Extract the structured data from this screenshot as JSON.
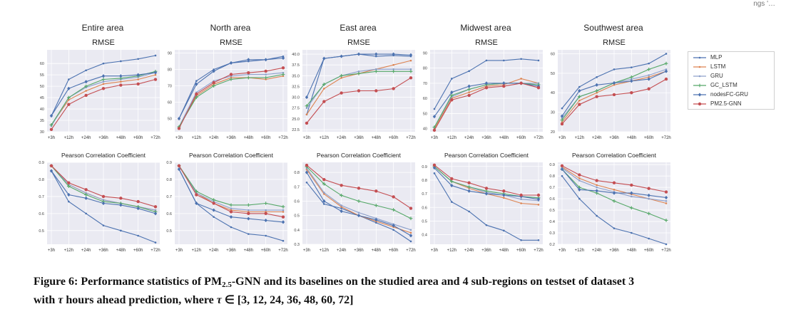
{
  "header_fragment": "ngs '…",
  "regions": [
    "Entire area",
    "North area",
    "East area",
    "Midwest area",
    "Southwest area"
  ],
  "x_ticks": [
    "+3h",
    "+12h",
    "+24h",
    "+36h",
    "+48h",
    "+60h",
    "+72h"
  ],
  "legend": [
    {
      "name": "MLP",
      "color": "#4c72b0",
      "marker": "none"
    },
    {
      "name": "LSTM",
      "color": "#dd8452",
      "marker": "none"
    },
    {
      "name": "GRU",
      "color": "#8da0cb",
      "marker": "none"
    },
    {
      "name": "GC_LSTM",
      "color": "#55a868",
      "marker": "plus"
    },
    {
      "name": "nodesFC-GRU",
      "color": "#4c72b0",
      "marker": "diamond"
    },
    {
      "name": "PM2.5-GNN",
      "color": "#c44e52",
      "marker": "circle"
    }
  ],
  "caption": {
    "prefix": "Figure 6: Performance statistics of PM",
    "sub": "2.5",
    "mid": "-GNN and its baselines on the studied area and 4 sub-regions on testset of dataset 3",
    "line2_a": "with ",
    "tau": "τ",
    "line2_b": " hours ahead prediction, where ",
    "line2_c": " ∈ [3, 12, 24, 36, 48, 60, 72]"
  },
  "chart_data": [
    {
      "type": "line",
      "region": "Entire area",
      "title": "RMSE",
      "ylim": [
        30,
        66
      ],
      "yticks": [
        "30",
        "35",
        "40",
        "45",
        "50",
        "55",
        "60"
      ],
      "categories": [
        "+3h",
        "+12h",
        "+24h",
        "+36h",
        "+48h",
        "+60h",
        "+72h"
      ],
      "series": [
        {
          "name": "MLP",
          "values": [
            37,
            53,
            57,
            60,
            61,
            62,
            63.5
          ]
        },
        {
          "name": "LSTM",
          "values": [
            33,
            44,
            48,
            51,
            52,
            53,
            55
          ]
        },
        {
          "name": "GRU",
          "values": [
            32.5,
            45,
            49.5,
            52,
            53,
            54,
            56
          ]
        },
        {
          "name": "GC_LSTM",
          "values": [
            33,
            45,
            50,
            53,
            53.5,
            54.5,
            56.5
          ]
        },
        {
          "name": "nodesFC-GRU",
          "values": [
            37,
            49,
            52,
            54.5,
            54.5,
            55,
            56
          ]
        },
        {
          "name": "PM2.5-GNN",
          "values": [
            31,
            42,
            46,
            49,
            50.5,
            51,
            53
          ]
        }
      ]
    },
    {
      "type": "line",
      "region": "North area",
      "title": "RMSE",
      "ylim": [
        42,
        92
      ],
      "yticks": [
        "50",
        "60",
        "70",
        "80",
        "90"
      ],
      "categories": [
        "+3h",
        "+12h",
        "+24h",
        "+36h",
        "+48h",
        "+60h",
        "+72h"
      ],
      "series": [
        {
          "name": "MLP",
          "values": [
            50,
            73,
            80,
            84,
            85,
            86,
            88
          ]
        },
        {
          "name": "LSTM",
          "values": [
            45,
            64,
            71,
            75,
            75,
            74,
            76
          ]
        },
        {
          "name": "GRU",
          "values": [
            45,
            66,
            73,
            76,
            77,
            77,
            78
          ]
        },
        {
          "name": "GC_LSTM",
          "values": [
            45,
            63,
            70,
            74,
            75,
            75,
            77
          ]
        },
        {
          "name": "nodesFC-GRU",
          "values": [
            50,
            71,
            79,
            84,
            86,
            86,
            87
          ]
        },
        {
          "name": "PM2.5-GNN",
          "values": [
            44,
            65,
            72,
            77,
            78,
            79,
            81
          ]
        }
      ]
    },
    {
      "type": "line",
      "region": "East area",
      "title": "RMSE",
      "ylim": [
        22,
        41
      ],
      "yticks": [
        "22.5",
        "25.0",
        "27.5",
        "30.0",
        "32.5",
        "35.0",
        "37.5",
        "40.0"
      ],
      "categories": [
        "+3h",
        "+12h",
        "+24h",
        "+36h",
        "+48h",
        "+60h",
        "+72h"
      ],
      "series": [
        {
          "name": "MLP",
          "values": [
            26,
            39,
            39.5,
            40,
            39.5,
            39.7,
            39.5
          ]
        },
        {
          "name": "LSTM",
          "values": [
            26,
            32,
            34.5,
            35.5,
            36.5,
            37.5,
            38.5
          ]
        },
        {
          "name": "GRU",
          "values": [
            27.5,
            33,
            35,
            36,
            36.5,
            36.5,
            36.5
          ]
        },
        {
          "name": "GC_LSTM",
          "values": [
            28,
            33,
            35,
            35.5,
            36,
            36,
            36
          ]
        },
        {
          "name": "nodesFC-GRU",
          "values": [
            30,
            39,
            39.5,
            40,
            40,
            40,
            39.8
          ]
        },
        {
          "name": "PM2.5-GNN",
          "values": [
            24,
            29,
            31,
            31.5,
            31.5,
            32,
            34.5
          ]
        }
      ]
    },
    {
      "type": "line",
      "region": "Midwest area",
      "title": "RMSE",
      "ylim": [
        38,
        92
      ],
      "yticks": [
        "40",
        "50",
        "60",
        "70",
        "80",
        "90"
      ],
      "categories": [
        "+3h",
        "+12h",
        "+24h",
        "+36h",
        "+48h",
        "+60h",
        "+72h"
      ],
      "series": [
        {
          "name": "MLP",
          "values": [
            53,
            73,
            78,
            85,
            85,
            86,
            85
          ]
        },
        {
          "name": "LSTM",
          "values": [
            40,
            60,
            64,
            68,
            69,
            73,
            70
          ]
        },
        {
          "name": "GRU",
          "values": [
            41,
            61,
            66,
            69,
            70,
            70,
            70
          ]
        },
        {
          "name": "GC_LSTM",
          "values": [
            41,
            62,
            66,
            69,
            70,
            70,
            69
          ]
        },
        {
          "name": "nodesFC-GRU",
          "values": [
            48,
            64,
            68,
            70,
            70,
            70,
            68
          ]
        },
        {
          "name": "PM2.5-GNN",
          "values": [
            39,
            59,
            62,
            67,
            68,
            70,
            67
          ]
        }
      ]
    },
    {
      "type": "line",
      "region": "Southwest area",
      "title": "RMSE",
      "ylim": [
        20,
        62
      ],
      "yticks": [
        "20",
        "30",
        "40",
        "50",
        "60"
      ],
      "categories": [
        "+3h",
        "+12h",
        "+24h",
        "+36h",
        "+48h",
        "+60h",
        "+72h"
      ],
      "series": [
        {
          "name": "MLP",
          "values": [
            32,
            43,
            48,
            52,
            53,
            55,
            60
          ]
        },
        {
          "name": "LSTM",
          "values": [
            25,
            36,
            40,
            44,
            46,
            48,
            51
          ]
        },
        {
          "name": "GRU",
          "values": [
            27,
            38,
            41,
            45,
            47,
            49,
            52
          ]
        },
        {
          "name": "GC_LSTM",
          "values": [
            26,
            38,
            41,
            45,
            48,
            52,
            55
          ]
        },
        {
          "name": "nodesFC-GRU",
          "values": [
            28,
            41,
            44,
            45,
            46,
            47,
            51
          ]
        },
        {
          "name": "PM2.5-GNN",
          "values": [
            24,
            34,
            38,
            39,
            40,
            42,
            47
          ]
        }
      ]
    },
    {
      "type": "line",
      "region": "Entire area",
      "title": "Pearson Correlation Coefficient",
      "ylim": [
        0.42,
        0.9
      ],
      "yticks": [
        "0.5",
        "0.6",
        "0.7",
        "0.8",
        "0.9"
      ],
      "categories": [
        "+3h",
        "+12h",
        "+24h",
        "+36h",
        "+48h",
        "+60h",
        "+72h"
      ],
      "series": [
        {
          "name": "MLP",
          "values": [
            0.85,
            0.67,
            0.6,
            0.53,
            0.5,
            0.47,
            0.43
          ]
        },
        {
          "name": "LSTM",
          "values": [
            0.88,
            0.77,
            0.72,
            0.68,
            0.66,
            0.64,
            0.62
          ]
        },
        {
          "name": "GRU",
          "values": [
            0.88,
            0.77,
            0.72,
            0.68,
            0.66,
            0.64,
            0.62
          ]
        },
        {
          "name": "GC_LSTM",
          "values": [
            0.88,
            0.76,
            0.71,
            0.67,
            0.66,
            0.64,
            0.61
          ]
        },
        {
          "name": "nodesFC-GRU",
          "values": [
            0.85,
            0.71,
            0.69,
            0.66,
            0.65,
            0.63,
            0.6
          ]
        },
        {
          "name": "PM2.5-GNN",
          "values": [
            0.88,
            0.78,
            0.74,
            0.7,
            0.69,
            0.67,
            0.64
          ]
        }
      ]
    },
    {
      "type": "line",
      "region": "North area",
      "title": "Pearson Correlation Coefficient",
      "ylim": [
        0.42,
        0.9
      ],
      "yticks": [
        "0.5",
        "0.6",
        "0.7",
        "0.8",
        "0.9"
      ],
      "categories": [
        "+3h",
        "+12h",
        "+24h",
        "+36h",
        "+48h",
        "+60h",
        "+72h"
      ],
      "series": [
        {
          "name": "MLP",
          "values": [
            0.86,
            0.66,
            0.58,
            0.52,
            0.48,
            0.47,
            0.44
          ]
        },
        {
          "name": "LSTM",
          "values": [
            0.88,
            0.72,
            0.66,
            0.62,
            0.61,
            0.61,
            0.61
          ]
        },
        {
          "name": "GRU",
          "values": [
            0.88,
            0.72,
            0.67,
            0.63,
            0.62,
            0.62,
            0.62
          ]
        },
        {
          "name": "GC_LSTM",
          "values": [
            0.88,
            0.73,
            0.68,
            0.65,
            0.65,
            0.66,
            0.64
          ]
        },
        {
          "name": "nodesFC-GRU",
          "values": [
            0.86,
            0.66,
            0.62,
            0.58,
            0.57,
            0.56,
            0.55
          ]
        },
        {
          "name": "PM2.5-GNN",
          "values": [
            0.88,
            0.71,
            0.66,
            0.61,
            0.6,
            0.6,
            0.58
          ]
        }
      ]
    },
    {
      "type": "line",
      "region": "East area",
      "title": "Pearson Correlation Coefficient",
      "ylim": [
        0.3,
        0.87
      ],
      "yticks": [
        "0.3",
        "0.4",
        "0.5",
        "0.6",
        "0.7",
        "0.8"
      ],
      "categories": [
        "+3h",
        "+12h",
        "+24h",
        "+36h",
        "+48h",
        "+60h",
        "+72h"
      ],
      "series": [
        {
          "name": "MLP",
          "values": [
            0.73,
            0.58,
            0.55,
            0.5,
            0.45,
            0.4,
            0.32
          ]
        },
        {
          "name": "LSTM",
          "values": [
            0.82,
            0.65,
            0.56,
            0.5,
            0.46,
            0.42,
            0.38
          ]
        },
        {
          "name": "GRU",
          "values": [
            0.83,
            0.66,
            0.57,
            0.52,
            0.48,
            0.44,
            0.4
          ]
        },
        {
          "name": "GC_LSTM",
          "values": [
            0.84,
            0.72,
            0.64,
            0.6,
            0.57,
            0.54,
            0.48
          ]
        },
        {
          "name": "nodesFC-GRU",
          "values": [
            0.8,
            0.6,
            0.53,
            0.5,
            0.47,
            0.43,
            0.36
          ]
        },
        {
          "name": "PM2.5-GNN",
          "values": [
            0.85,
            0.75,
            0.71,
            0.69,
            0.67,
            0.63,
            0.55
          ]
        }
      ]
    },
    {
      "type": "line",
      "region": "Midwest area",
      "title": "Pearson Correlation Coefficient",
      "ylim": [
        0.33,
        0.93
      ],
      "yticks": [
        "0.4",
        "0.5",
        "0.6",
        "0.7",
        "0.8",
        "0.9"
      ],
      "categories": [
        "+3h",
        "+12h",
        "+24h",
        "+36h",
        "+48h",
        "+60h",
        "+72h"
      ],
      "series": [
        {
          "name": "MLP",
          "values": [
            0.85,
            0.64,
            0.57,
            0.47,
            0.43,
            0.36,
            0.36
          ]
        },
        {
          "name": "LSTM",
          "values": [
            0.9,
            0.79,
            0.74,
            0.7,
            0.67,
            0.63,
            0.62
          ]
        },
        {
          "name": "GRU",
          "values": [
            0.9,
            0.79,
            0.75,
            0.71,
            0.69,
            0.66,
            0.65
          ]
        },
        {
          "name": "GC_LSTM",
          "values": [
            0.9,
            0.79,
            0.75,
            0.72,
            0.7,
            0.68,
            0.67
          ]
        },
        {
          "name": "nodesFC-GRU",
          "values": [
            0.89,
            0.76,
            0.72,
            0.7,
            0.69,
            0.68,
            0.66
          ]
        },
        {
          "name": "PM2.5-GNN",
          "values": [
            0.91,
            0.81,
            0.78,
            0.74,
            0.72,
            0.69,
            0.69
          ]
        }
      ]
    },
    {
      "type": "line",
      "region": "Southwest area",
      "title": "Pearson Correlation Coefficient",
      "ylim": [
        0.2,
        0.92
      ],
      "yticks": [
        "0.2",
        "0.3",
        "0.4",
        "0.5",
        "0.6",
        "0.7",
        "0.8",
        "0.9"
      ],
      "categories": [
        "+3h",
        "+12h",
        "+24h",
        "+36h",
        "+48h",
        "+60h",
        "+72h"
      ],
      "series": [
        {
          "name": "MLP",
          "values": [
            0.8,
            0.6,
            0.45,
            0.34,
            0.3,
            0.25,
            0.2
          ]
        },
        {
          "name": "LSTM",
          "values": [
            0.88,
            0.78,
            0.72,
            0.68,
            0.64,
            0.6,
            0.56
          ]
        },
        {
          "name": "GRU",
          "values": [
            0.87,
            0.76,
            0.7,
            0.66,
            0.62,
            0.6,
            0.58
          ]
        },
        {
          "name": "GC_LSTM",
          "values": [
            0.86,
            0.7,
            0.65,
            0.58,
            0.52,
            0.47,
            0.41
          ]
        },
        {
          "name": "nodesFC-GRU",
          "values": [
            0.86,
            0.68,
            0.67,
            0.65,
            0.65,
            0.63,
            0.61
          ]
        },
        {
          "name": "PM2.5-GNN",
          "values": [
            0.89,
            0.81,
            0.76,
            0.74,
            0.72,
            0.69,
            0.66
          ]
        }
      ]
    }
  ]
}
